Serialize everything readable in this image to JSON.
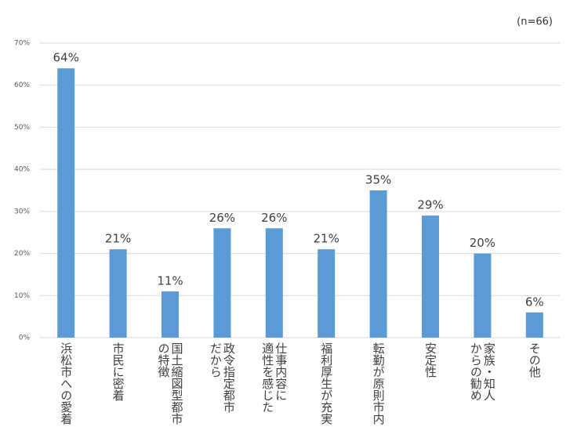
{
  "chart_data": {
    "type": "bar",
    "annotation": "(n=66)",
    "categories": [
      [
        "浜松市への愛着"
      ],
      [
        "市民に密着"
      ],
      [
        "国土縮図型都市",
        "の特徴"
      ],
      [
        "政令指定都市",
        "だから"
      ],
      [
        "仕事内容に",
        "適性を感じた"
      ],
      [
        "福利厚生が充実"
      ],
      [
        "転勤が原則市内"
      ],
      [
        "安定性"
      ],
      [
        "家族・知人",
        "からの勧め"
      ],
      [
        "その他"
      ]
    ],
    "values": [
      64,
      21,
      11,
      26,
      26,
      21,
      35,
      29,
      20,
      6
    ],
    "value_labels": [
      "64%",
      "21%",
      "11%",
      "26%",
      "26%",
      "21%",
      "35%",
      "29%",
      "20%",
      "6%"
    ],
    "color": "#5b9bd5",
    "ylim": [
      0,
      70
    ],
    "yticks": [
      {
        "value": 0,
        "label": "0%"
      },
      {
        "value": 10,
        "label": "10%"
      },
      {
        "value": 20,
        "label": "20%"
      },
      {
        "value": 30,
        "label": "30%"
      },
      {
        "value": 40,
        "label": "40%"
      },
      {
        "value": 50,
        "label": "50%"
      },
      {
        "value": 60,
        "label": "60%"
      },
      {
        "value": 70,
        "label": "70%"
      }
    ],
    "grid": true
  }
}
